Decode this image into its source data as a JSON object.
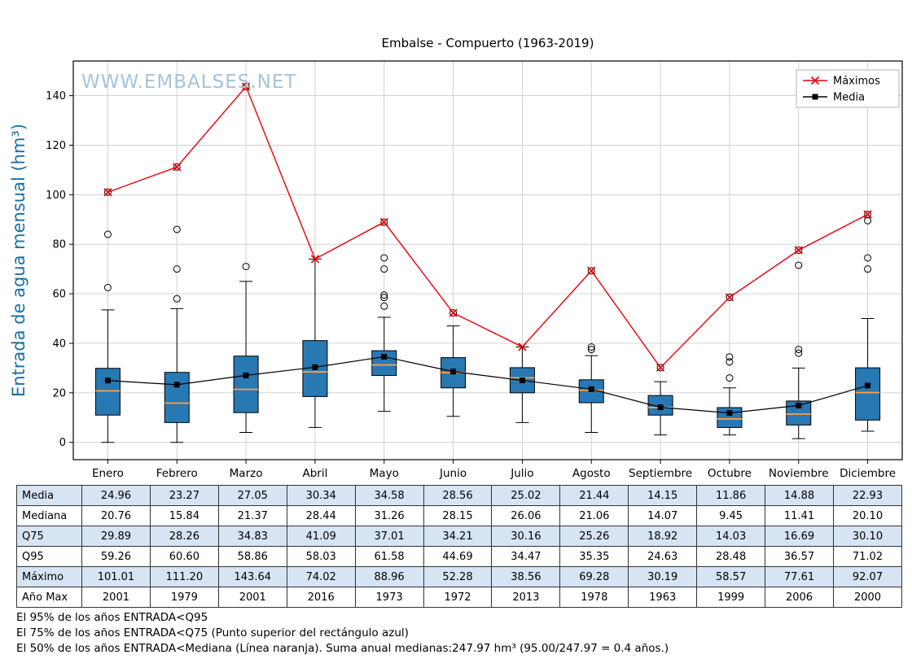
{
  "title": "Embalse - Compuerto (1963-2019)",
  "watermark": "WWW.EMBALSES.NET",
  "ylabel": "Entrada de agua mensual (hm³)",
  "legend": {
    "items": [
      {
        "label": "Máximos",
        "color": "#e8000b",
        "marker": "x"
      },
      {
        "label": "Media",
        "color": "#000000",
        "marker": "square"
      }
    ]
  },
  "chart_data": {
    "type": "boxplot",
    "title": "Embalse - Compuerto (1963-2019)",
    "ylabel": "Entrada de agua mensual (hm³)",
    "categories": [
      "Enero",
      "Febrero",
      "Marzo",
      "Abril",
      "Mayo",
      "Junio",
      "Julio",
      "Agosto",
      "Septiembre",
      "Octubre",
      "Noviembre",
      "Diciembre"
    ],
    "ylim": [
      -7,
      154
    ],
    "yticks": [
      0,
      20,
      40,
      60,
      80,
      100,
      120,
      140
    ],
    "grid": true,
    "legend_position": "upper right",
    "box_color": "#2878b4",
    "median_color": "#ffa245",
    "box": {
      "q1": [
        11,
        8,
        12,
        18.5,
        27,
        22,
        20,
        16,
        11,
        6,
        7,
        9
      ],
      "median": [
        20.76,
        15.84,
        21.37,
        28.44,
        31.26,
        28.15,
        26.06,
        21.06,
        14.07,
        9.45,
        11.41,
        20.1
      ],
      "q3": [
        29.89,
        28.26,
        34.83,
        41.09,
        37.01,
        34.21,
        30.16,
        25.26,
        18.92,
        14.03,
        16.69,
        30.1
      ],
      "whisker_low": [
        0,
        0,
        4,
        6,
        12.5,
        10.5,
        8,
        4,
        3,
        3,
        1.5,
        4.5
      ],
      "whisker_high": [
        53.5,
        54,
        65,
        74.02,
        50.5,
        47,
        38.56,
        35,
        24.5,
        22,
        30,
        50
      ],
      "outliers": [
        [
          62.5,
          84,
          101.01
        ],
        [
          58,
          70,
          86,
          111.2
        ],
        [
          71,
          143.64
        ],
        [],
        [
          55,
          58.5,
          59.5,
          70,
          74.5,
          88.96
        ],
        [
          52.28
        ],
        [],
        [
          37.5,
          38.5,
          69.28
        ],
        [
          30.19
        ],
        [
          26,
          32.5,
          34.5,
          58.57
        ],
        [
          36,
          37.5,
          71.5,
          77.61
        ],
        [
          70,
          74.5,
          89.5,
          92.07
        ]
      ]
    },
    "series": [
      {
        "name": "Máximos",
        "color": "#e8000b",
        "marker": "x",
        "values": [
          101.01,
          111.2,
          143.64,
          74.02,
          88.96,
          52.28,
          38.56,
          69.28,
          30.19,
          58.57,
          77.61,
          92.07
        ]
      },
      {
        "name": "Media",
        "color": "#000000",
        "marker": "square",
        "values": [
          24.96,
          23.27,
          27.05,
          30.34,
          34.58,
          28.56,
          25.02,
          21.44,
          14.15,
          11.86,
          14.88,
          22.93
        ]
      }
    ]
  },
  "table": {
    "rows": [
      {
        "label": "Media",
        "values": [
          "24.96",
          "23.27",
          "27.05",
          "30.34",
          "34.58",
          "28.56",
          "25.02",
          "21.44",
          "14.15",
          "11.86",
          "14.88",
          "22.93"
        ]
      },
      {
        "label": "Mediana",
        "values": [
          "20.76",
          "15.84",
          "21.37",
          "28.44",
          "31.26",
          "28.15",
          "26.06",
          "21.06",
          "14.07",
          "9.45",
          "11.41",
          "20.10"
        ]
      },
      {
        "label": "Q75",
        "values": [
          "29.89",
          "28.26",
          "34.83",
          "41.09",
          "37.01",
          "34.21",
          "30.16",
          "25.26",
          "18.92",
          "14.03",
          "16.69",
          "30.10"
        ]
      },
      {
        "label": "Q95",
        "values": [
          "59.26",
          "60.60",
          "58.86",
          "58.03",
          "61.58",
          "44.69",
          "34.47",
          "35.35",
          "24.63",
          "28.48",
          "36.57",
          "71.02"
        ]
      },
      {
        "label": "Máximo",
        "values": [
          "101.01",
          "111.20",
          "143.64",
          "74.02",
          "88.96",
          "52.28",
          "38.56",
          "69.28",
          "30.19",
          "58.57",
          "77.61",
          "92.07"
        ]
      },
      {
        "label": "Año Max",
        "values": [
          "2001",
          "1979",
          "2001",
          "2016",
          "1973",
          "1972",
          "2013",
          "1978",
          "1963",
          "1999",
          "2006",
          "2000"
        ]
      }
    ]
  },
  "footnotes": [
    "El 95% de los años ENTRADA<Q95",
    "El 75% de los años ENTRADA<Q75 (Punto superior del rectángulo azul)",
    "El 50% de los años ENTRADA<Mediana (Línea naranja). Suma anual medianas:247.97 hm³ (95.00/247.97 = 0.4 años.)"
  ]
}
